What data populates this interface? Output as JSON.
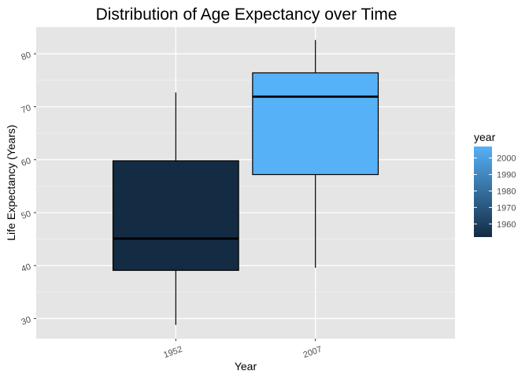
{
  "chart_data": {
    "type": "boxplot",
    "title": "Distribution of Age Expectancy over Time",
    "xlabel": "Year",
    "ylabel": "Life Expectancy (Years)",
    "categories": [
      "1952",
      "2007"
    ],
    "yticks": [
      30,
      40,
      50,
      60,
      70,
      80
    ],
    "ylim": [
      26.2,
      85.1
    ],
    "boxes": [
      {
        "category": "1952",
        "year": 1952,
        "whisker_low": 28.8,
        "q1": 39.1,
        "median": 45.1,
        "q3": 59.8,
        "whisker_high": 72.7,
        "fill": "#132B43"
      },
      {
        "category": "2007",
        "year": 2007,
        "whisker_low": 39.6,
        "q1": 57.2,
        "median": 71.9,
        "q3": 76.4,
        "whisker_high": 82.6,
        "fill": "#56B1F7"
      }
    ],
    "grid": true,
    "panel_background": "#e5e5e5",
    "legend": {
      "title": "year",
      "position": "right",
      "labels": [
        "1960",
        "1970",
        "1980",
        "1990",
        "2000"
      ],
      "label_values": [
        1960,
        1970,
        1980,
        1990,
        2000
      ],
      "range": [
        1952,
        2007
      ],
      "color_low": "#132B43",
      "color_high": "#56B1F7"
    }
  }
}
